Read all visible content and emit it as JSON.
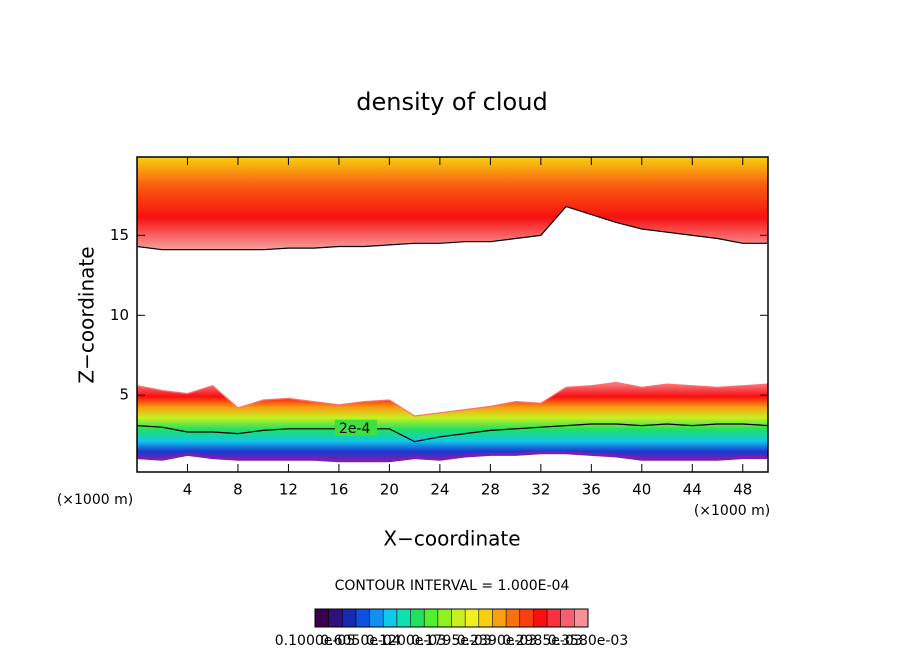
{
  "chart_data": {
    "type": "contour",
    "title": "density of cloud",
    "x_label": "X−coordinate",
    "y_label": "Z−coordinate",
    "x_unit": "(×1000 m)",
    "contour_interval": "CONTOUR INTERVAL = 1.000E-04",
    "xlim": [
      0,
      50
    ],
    "xticks": [
      4,
      8,
      12,
      16,
      20,
      24,
      28,
      32,
      36,
      40,
      44,
      48
    ],
    "ylim": [
      0.2,
      19.9
    ],
    "yticks": [
      5,
      10,
      15
    ],
    "x": [
      0,
      2,
      4,
      6,
      8,
      10,
      12,
      14,
      16,
      18,
      20,
      22,
      24,
      26,
      28,
      30,
      32,
      34,
      36,
      38,
      40,
      42,
      44,
      46,
      48,
      50
    ],
    "series": [
      {
        "color": "#000000",
        "values": [
          14.3,
          14.1,
          14.1,
          14.1,
          14.1,
          14.1,
          14.2,
          14.2,
          14.3,
          14.3,
          14.4,
          14.5,
          14.5,
          14.6,
          14.6,
          14.8,
          15.0,
          16.8,
          16.3,
          15.8,
          15.4,
          15.2,
          15.0,
          14.8,
          14.5,
          14.5
        ]
      },
      {
        "color": "#ff7070",
        "values": [
          5.6,
          5.3,
          5.1,
          5.6,
          4.2,
          4.7,
          4.8,
          4.6,
          4.4,
          4.6,
          4.7,
          3.7,
          3.9,
          4.1,
          4.3,
          4.6,
          4.5,
          5.5,
          5.6,
          5.8,
          5.5,
          5.7,
          5.6,
          5.5,
          5.6,
          5.7
        ]
      },
      {
        "color": "#000000",
        "label": "2e-4",
        "values": [
          3.1,
          3.0,
          2.7,
          2.7,
          2.6,
          2.8,
          2.9,
          2.9,
          2.9,
          2.9,
          2.9,
          2.1,
          2.4,
          2.6,
          2.8,
          2.9,
          3.0,
          3.1,
          3.2,
          3.2,
          3.1,
          3.2,
          3.1,
          3.2,
          3.2,
          3.1
        ]
      },
      {
        "color": "#7a1fb0",
        "values": [
          1.1,
          1.0,
          1.3,
          1.1,
          1.0,
          1.0,
          1.0,
          1.0,
          0.9,
          0.9,
          0.9,
          1.1,
          1.0,
          1.2,
          1.3,
          1.3,
          1.4,
          1.4,
          1.3,
          1.2,
          1.0,
          1.0,
          1.0,
          1.0,
          1.1,
          1.1
        ]
      }
    ],
    "colorbar": {
      "colors": [
        "#3a0050",
        "#30107a",
        "#1a2ab0",
        "#1050e0",
        "#1090f0",
        "#10c8e8",
        "#10e0b0",
        "#20e060",
        "#50f030",
        "#90f020",
        "#c8f020",
        "#f0f020",
        "#f8d010",
        "#f8a010",
        "#f87010",
        "#f84010",
        "#f81010",
        "#f83040",
        "#f86070",
        "#f89098"
      ],
      "labels": [
        "0.1000e-05",
        "0.6050e-04",
        "0.1200e-03",
        "0.1795e-03",
        "0.2390e-03",
        "0.2985e-03",
        "0.3580e-03"
      ]
    }
  }
}
